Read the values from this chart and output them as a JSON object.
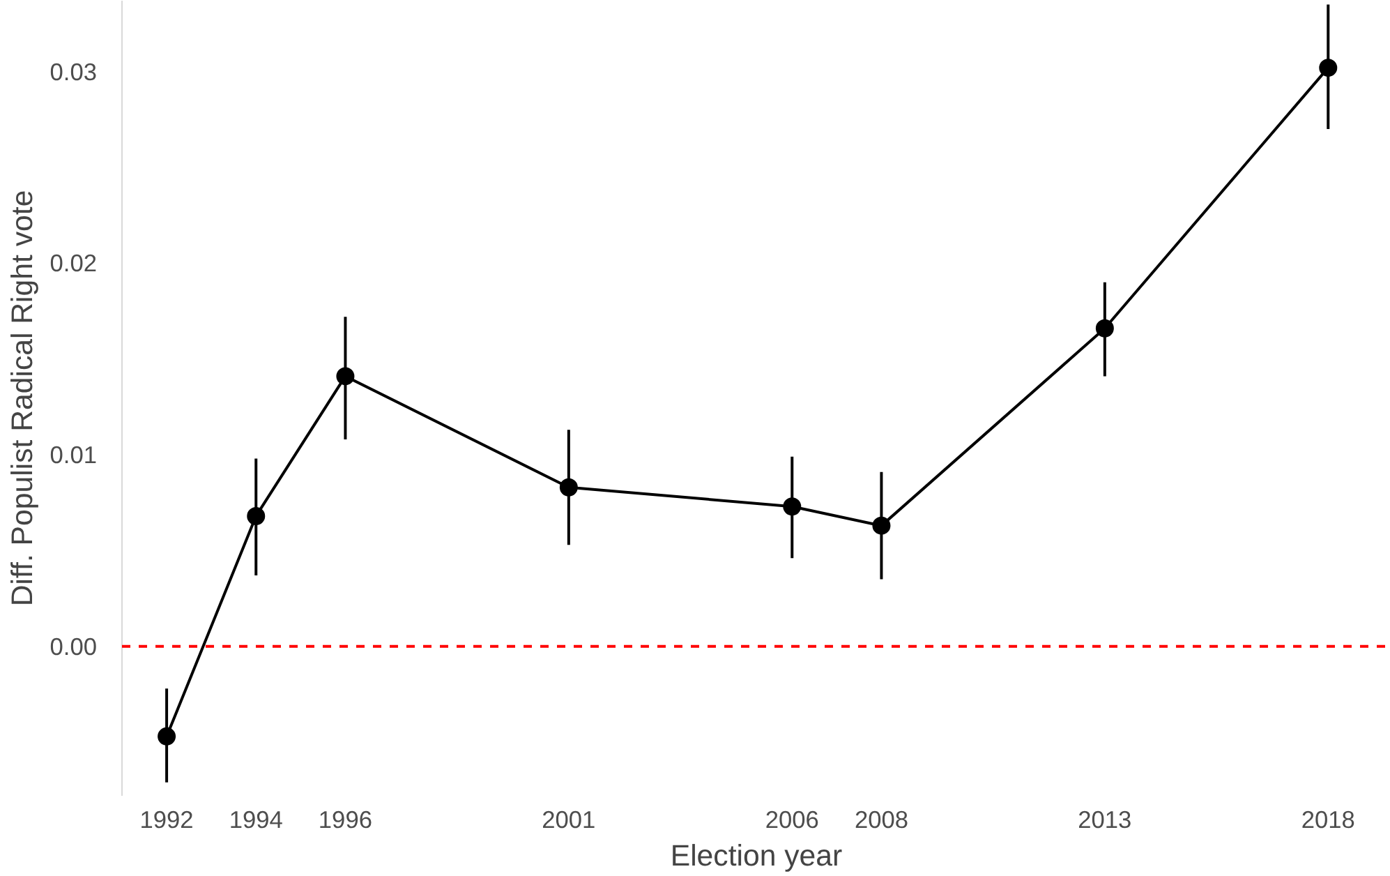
{
  "chart_data": {
    "type": "line",
    "xlabel": "Election year",
    "ylabel": "Diff. Populist Radical Right vote",
    "x": [
      1992,
      1994,
      1996,
      2001,
      2006,
      2008,
      2013,
      2018
    ],
    "series": [
      {
        "color": "#000000",
        "values": [
          -0.0047,
          0.0068,
          0.0141,
          0.0083,
          0.0073,
          0.0063,
          0.0166,
          0.0302
        ],
        "errors": [
          [
            -0.0071,
            -0.0022
          ],
          [
            0.0037,
            0.0098
          ],
          [
            0.0108,
            0.0172
          ],
          [
            0.0053,
            0.0113
          ],
          [
            0.0046,
            0.0099
          ],
          [
            0.0035,
            0.0091
          ],
          [
            0.0141,
            0.019
          ],
          [
            0.027,
            0.0335
          ]
        ]
      }
    ],
    "marker": "circle",
    "line_style": "solid",
    "grid": false,
    "xlim": [
      1991.0,
      2019.4
    ],
    "ylim": [
      -0.0078,
      0.0337
    ],
    "xticks": [
      1992,
      1994,
      1996,
      2001,
      2006,
      2008,
      2013,
      2018
    ],
    "yticks": [
      {
        "value": 0,
        "label": "0.00"
      },
      {
        "value": 0.01,
        "label": "0.01"
      },
      {
        "value": 0.02,
        "label": "0.02"
      },
      {
        "value": 0.03,
        "label": "0.03"
      }
    ],
    "ref_lines": [
      {
        "axis": "y",
        "value": 0,
        "color": "#ff0000",
        "line_style": "dashed"
      }
    ]
  }
}
